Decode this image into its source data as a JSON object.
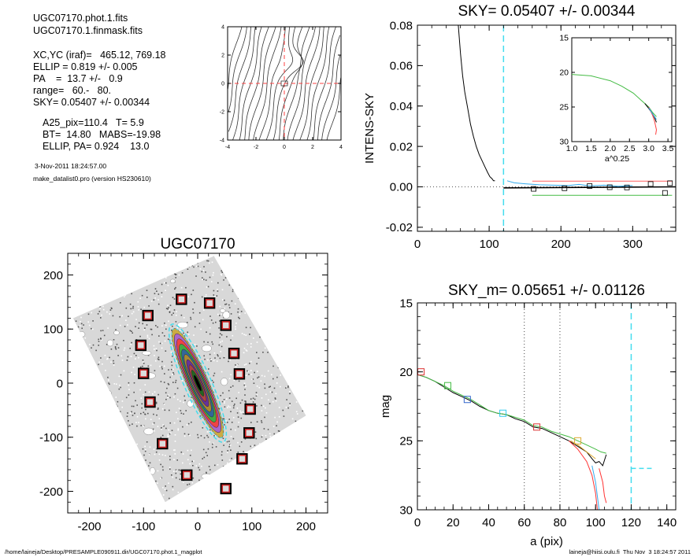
{
  "info": {
    "lines1": [
      "UGC07170.phot.1.fits",
      "UGC07170.1.finmask.fits"
    ],
    "lines2": [
      "XC,YC (iraf)=   465.12, 769.18",
      "ELLIP = 0.819 +/- 0.005",
      "PA    =  13.7 +/-   0.9",
      "range=   60.-   80.",
      "SKY= 0.05407 +/- 0.00344"
    ],
    "lines3": [
      "A25_pix=110.4   T= 5.9",
      "BT=  14.80   MABS=-19.98",
      "ELLIP, PA= 0.924    13.0"
    ],
    "date": "3-Nov-2011 18:24:57.00",
    "program": "make_datalist0.pro (version HS230610)"
  },
  "footer": {
    "left": "/home/laineja/Desktop/PRESAMPLE090911.dir/UGC07170.phot.1_magplot",
    "right": "laineja@hiisi.oulu.fi  Thu Nov  3 18:24:57 2011"
  },
  "chart_data": [
    {
      "id": "contour",
      "type": "line",
      "xlim": [
        -4,
        4
      ],
      "ylim": [
        -4,
        4
      ],
      "xticks": [
        -4,
        -2,
        0,
        2,
        4
      ],
      "yticks": [
        -4,
        -2,
        0,
        2,
        4
      ],
      "guides": {
        "vline": 0,
        "hline": 0
      }
    },
    {
      "id": "sky",
      "type": "line",
      "title": "SKY= 0.05407 +/- 0.00344",
      "ylabel": "INTENS-SKY",
      "xlim": [
        0,
        360
      ],
      "ylim": [
        -0.022,
        0.08
      ],
      "xticks": [
        0,
        100,
        200,
        300
      ],
      "yticks": [
        -0.02,
        0.0,
        0.02,
        0.04,
        0.06,
        0.08
      ],
      "ytick_labels": [
        "-0.02",
        "0.00",
        "0.02",
        "0.04",
        "0.06",
        "0.08"
      ],
      "series": [
        {
          "color": "#000000",
          "x": [
            57,
            60,
            63,
            66,
            70,
            74,
            78,
            82,
            86,
            90,
            94,
            98,
            101,
            104,
            106,
            108
          ],
          "y": [
            0.08,
            0.066,
            0.055,
            0.047,
            0.039,
            0.031,
            0.025,
            0.02,
            0.016,
            0.013,
            0.01,
            0.007,
            0.005,
            0.004,
            0.003,
            0.003
          ]
        },
        {
          "color": "#000000",
          "x": [
            120,
            360
          ],
          "y": [
            -0.0005,
            0.0
          ]
        },
        {
          "color": "#ff6060",
          "x": [
            160,
            355
          ],
          "y": [
            0.0028,
            0.0028
          ]
        },
        {
          "color": "#44bb44",
          "x": [
            160,
            355
          ],
          "y": [
            -0.0042,
            -0.0042
          ]
        },
        {
          "color": "#33aaee",
          "x": [
            125,
            135,
            150,
            170,
            190,
            210,
            225,
            240,
            260,
            280,
            300
          ],
          "y": [
            0.003,
            0.002,
            0.0015,
            0.001,
            0.0008,
            0.0006,
            0.0012,
            0.0005,
            0.0008,
            0.0003,
            0.0006
          ]
        }
      ],
      "squares": [
        [
          162,
          -0.001
        ],
        [
          205,
          -0.0007
        ],
        [
          240,
          0.0004
        ],
        [
          268,
          -0.0002
        ],
        [
          292,
          -0.0003
        ],
        [
          325,
          0.0014
        ],
        [
          345,
          -0.003
        ],
        [
          352,
          0.0018
        ]
      ],
      "vline": 120,
      "zero_line": 0,
      "inset": {
        "xlim": [
          1.0,
          3.6
        ],
        "ylim": [
          15,
          30
        ],
        "xticks": [
          1.0,
          1.5,
          2.0,
          2.5,
          3.0,
          3.5
        ],
        "xtick_labels": [
          "1.0",
          "1.5",
          "2.0",
          "2.5",
          "3.0",
          "3.5"
        ],
        "yticks": [
          15,
          20,
          25,
          30
        ],
        "xlabel": "a^0.25",
        "series": [
          {
            "color": "#44bb44",
            "x": [
              1.0,
              1.5,
              2.0,
              2.3,
              2.6,
              2.8,
              3.0,
              3.1,
              3.2
            ],
            "y": [
              20.3,
              20.5,
              21.2,
              22.0,
              23.0,
              24.0,
              25.0,
              25.8,
              26.4
            ]
          },
          {
            "color": "#000000",
            "x": [
              2.9,
              3.0,
              3.1,
              3.15,
              3.2
            ],
            "y": [
              24.5,
              25.2,
              26.0,
              26.5,
              27.2
            ]
          },
          {
            "color": "#ff4040",
            "x": [
              3.0,
              3.1,
              3.15,
              3.2,
              3.18
            ],
            "y": [
              25.0,
              26.2,
              27.0,
              28.3,
              29.0
            ]
          },
          {
            "color": "#33aaee",
            "x": [
              3.0,
              3.1,
              3.2
            ],
            "y": [
              25.1,
              26.0,
              26.8
            ]
          }
        ]
      }
    },
    {
      "id": "image",
      "type": "scatter",
      "title": "UGC07170",
      "xlim": [
        -240,
        240
      ],
      "ylim": [
        -240,
        240
      ],
      "xticks": [
        -200,
        -100,
        0,
        100,
        200
      ],
      "yticks": [
        -200,
        -100,
        0,
        100,
        200
      ],
      "squares": [
        [
          -30,
          155
        ],
        [
          22,
          148
        ],
        [
          -92,
          125
        ],
        [
          52,
          107
        ],
        [
          -105,
          70
        ],
        [
          67,
          55
        ],
        [
          -100,
          18
        ],
        [
          77,
          17
        ],
        [
          -88,
          -35
        ],
        [
          97,
          -48
        ],
        [
          -65,
          -112
        ],
        [
          95,
          -92
        ],
        [
          -20,
          -170
        ],
        [
          82,
          -140
        ],
        [
          52,
          -195
        ]
      ],
      "ellipse": {
        "a": 110,
        "ellip": 0.819,
        "pa_deg": 13.7
      }
    },
    {
      "id": "mag",
      "type": "line",
      "title": "SKY_m=  0.05651 +/- 0.01126",
      "xlabel": "a (pix)",
      "ylabel": "mag",
      "xlim": [
        0,
        145
      ],
      "ylim": [
        15,
        30
      ],
      "xticks": [
        0,
        20,
        40,
        60,
        80,
        100,
        120,
        140
      ],
      "yticks": [
        15,
        20,
        25,
        30
      ],
      "series": [
        {
          "color": "#000000",
          "x": [
            0,
            5,
            10,
            15,
            20,
            25,
            30,
            35,
            40,
            45,
            50,
            55,
            60,
            65,
            70,
            75,
            80,
            85,
            90,
            95,
            98,
            100,
            102,
            104,
            106
          ],
          "y": [
            20.2,
            20.4,
            20.7,
            21.1,
            21.5,
            21.8,
            22.1,
            22.5,
            22.8,
            23.0,
            23.1,
            23.4,
            23.6,
            24.0,
            24.1,
            24.4,
            24.7,
            25.0,
            25.4,
            25.8,
            26.3,
            26.6,
            26.5,
            26.8,
            26.0
          ]
        },
        {
          "color": "#44bb44",
          "x": [
            0,
            5,
            10,
            15,
            20,
            25,
            30,
            35,
            40,
            45,
            50,
            55,
            60,
            65,
            70,
            75,
            80,
            85,
            90,
            95,
            100,
            103,
            106
          ],
          "y": [
            20.2,
            20.4,
            20.7,
            21.0,
            21.4,
            21.7,
            22.0,
            22.4,
            22.8,
            23.0,
            23.1,
            23.3,
            23.5,
            23.9,
            24.0,
            24.3,
            24.5,
            24.7,
            25.0,
            25.3,
            25.6,
            25.8,
            25.9
          ]
        },
        {
          "color": "#ff3333",
          "x": [
            85,
            90,
            95,
            98,
            100,
            101
          ],
          "y": [
            25.0,
            25.6,
            26.5,
            27.5,
            28.8,
            30.0
          ]
        },
        {
          "color": "#ff3333",
          "x": [
            102,
            104,
            105,
            106
          ],
          "y": [
            27.0,
            28.0,
            29.0,
            29.5
          ]
        },
        {
          "color": "#33aaee",
          "x": [
            98,
            100,
            102
          ],
          "y": [
            26.8,
            28.0,
            30.0
          ]
        },
        {
          "color": "#ddaa33",
          "x": [
            86,
            90,
            95,
            100
          ],
          "y": [
            25.0,
            25.3,
            25.8,
            26.3
          ]
        }
      ],
      "squares": [
        {
          "x": 2,
          "y": 20.0,
          "color": "#dd3333"
        },
        {
          "x": 17,
          "y": 21.0,
          "color": "#44bb44"
        },
        {
          "x": 28,
          "y": 22.0,
          "color": "#3366cc"
        },
        {
          "x": 48,
          "y": 23.0,
          "color": "#33ccee"
        },
        {
          "x": 67,
          "y": 24.0,
          "color": "#dd3333"
        },
        {
          "x": 90,
          "y": 25.0,
          "color": "#ddaa33"
        }
      ],
      "dotted_vlines": [
        60,
        80
      ],
      "cyan_vline": 120,
      "cyan_dash": {
        "x": [
          120,
          132
        ],
        "y": 27.0
      }
    }
  ]
}
